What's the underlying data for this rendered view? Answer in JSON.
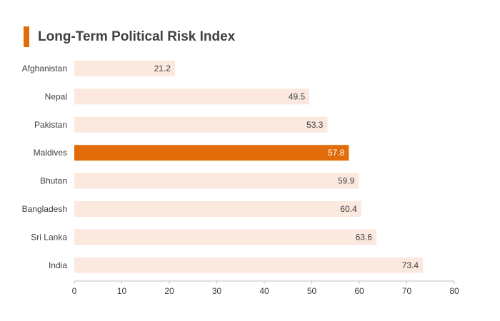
{
  "title": "Long-Term Political Risk Index",
  "colors": {
    "accent": "#e36c0a",
    "bar": "#fbe9df",
    "highlight": "#e36c0a",
    "text": "#404040",
    "axis": "#bfbfbf"
  },
  "chart_data": {
    "type": "bar",
    "orientation": "horizontal",
    "title": "Long-Term Political Risk Index",
    "categories": [
      "Afghanistan",
      "Nepal",
      "Pakistan",
      "Maldives",
      "Bhutan",
      "Bangladesh",
      "Sri Lanka",
      "India"
    ],
    "values": [
      21.2,
      49.5,
      53.3,
      57.8,
      59.9,
      60.4,
      63.6,
      73.4
    ],
    "value_labels": [
      "21.2",
      "49.5",
      "53.3",
      "57.8",
      "59.9",
      "60.4",
      "63.6",
      "73.4"
    ],
    "highlight": "Maldives",
    "xlim": [
      0,
      80
    ],
    "xticks": [
      0,
      10,
      20,
      30,
      40,
      50,
      60,
      70,
      80
    ],
    "xtick_labels": [
      "0",
      "10",
      "20",
      "30",
      "40",
      "50",
      "60",
      "70",
      "80"
    ],
    "xlabel": "",
    "ylabel": "",
    "grid": false,
    "legend": "none"
  }
}
